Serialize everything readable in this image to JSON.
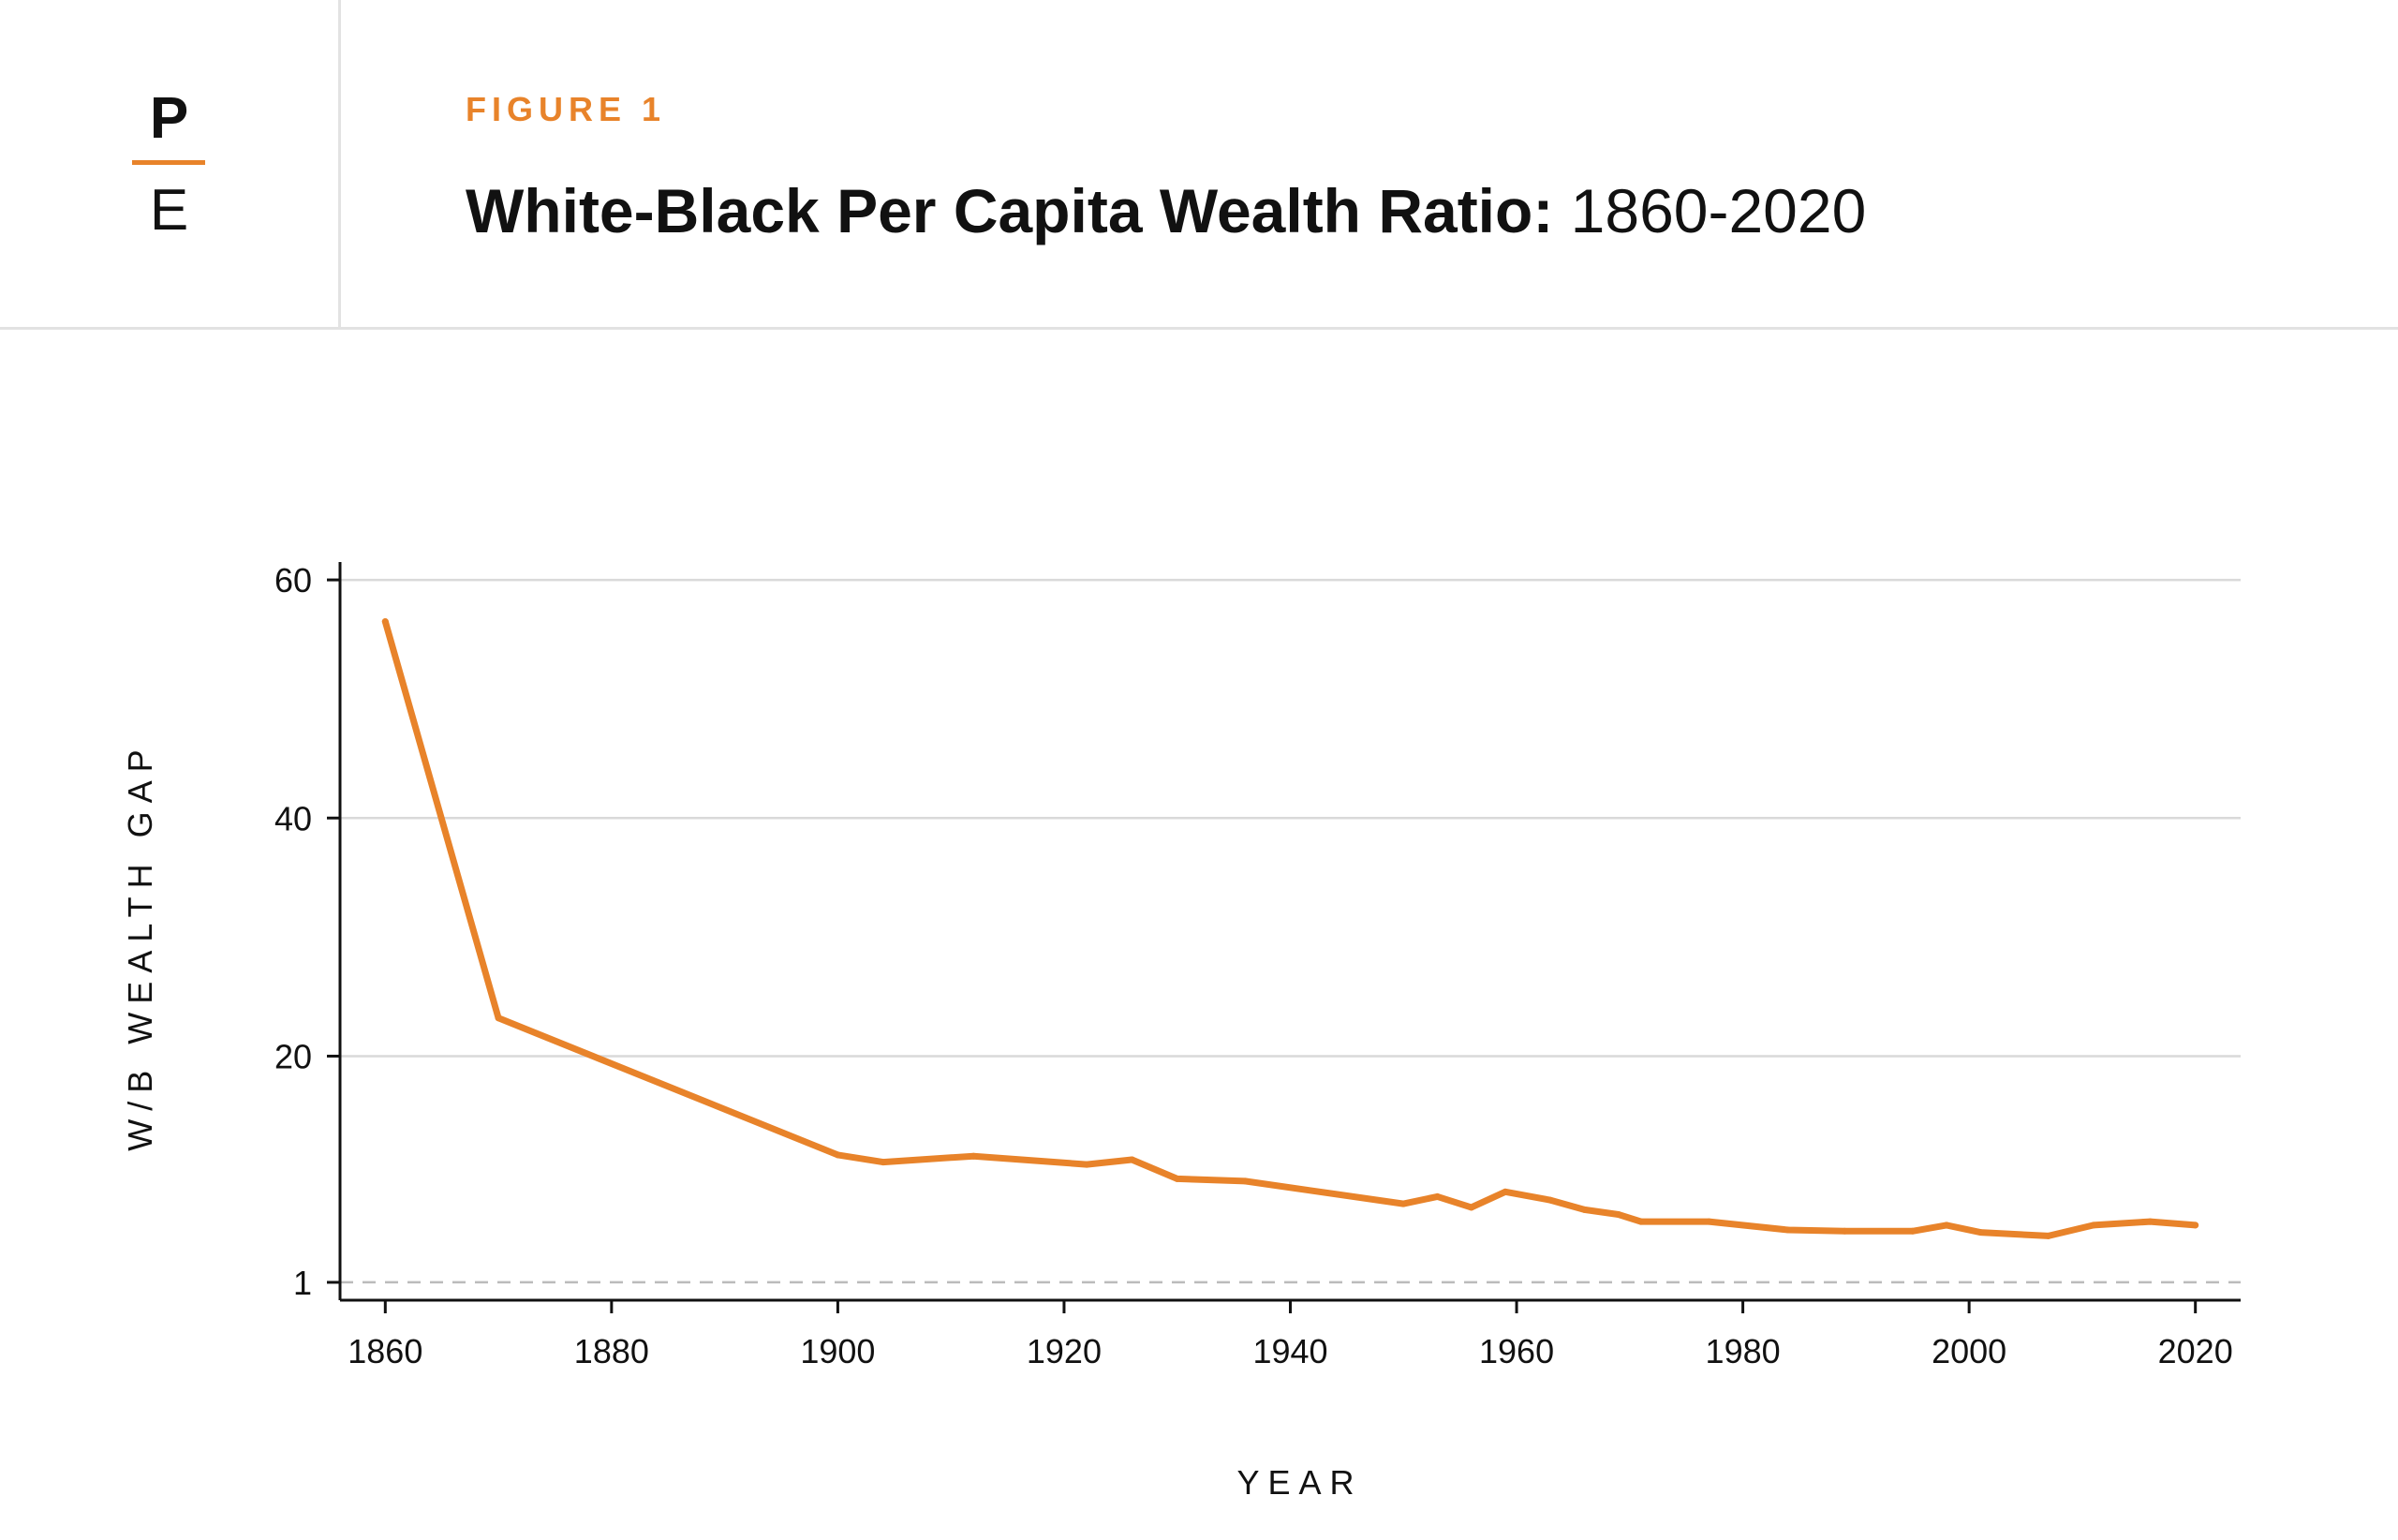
{
  "brand": {
    "top_letter": "P",
    "bottom_letter": "E"
  },
  "figure": {
    "label": "FIGURE 1",
    "title_bold": "White-Black Per Capita Wealth Ratio:",
    "title_light": "1860-2020"
  },
  "colors": {
    "accent": "#e8832a",
    "grid": "#d9d9d9",
    "axis": "#111111",
    "reference": "#bbbbbb"
  },
  "chart_data": {
    "type": "line",
    "title": "White-Black Per Capita Wealth Ratio: 1860-2020",
    "xlabel": "YEAR",
    "ylabel": "W/B WEALTH GAP",
    "xlim": [
      1856,
      2024
    ],
    "ylim": [
      -0.5,
      61.5
    ],
    "x_ticks": [
      1860,
      1880,
      1900,
      1920,
      1940,
      1960,
      1980,
      2000,
      2020
    ],
    "y_ticks": [
      1,
      20,
      40,
      60
    ],
    "grid": true,
    "reference_line": {
      "y": 1,
      "style": "dashed"
    },
    "series": [
      {
        "name": "White-Black wealth ratio",
        "x": [
          1860,
          1870,
          1900,
          1904,
          1912,
          1922,
          1926,
          1930,
          1936,
          1950,
          1953,
          1956,
          1959,
          1963,
          1966,
          1969,
          1971,
          1977,
          1984,
          1989,
          1995,
          1998,
          2001,
          2007,
          2011,
          2016,
          2020
        ],
        "y": [
          56.5,
          23.2,
          11.7,
          11.1,
          11.6,
          10.9,
          11.3,
          9.7,
          9.5,
          7.6,
          8.2,
          7.3,
          8.6,
          7.9,
          7.1,
          6.7,
          6.1,
          6.1,
          5.4,
          5.3,
          5.3,
          5.8,
          5.2,
          4.9,
          5.8,
          6.1,
          5.8
        ]
      }
    ]
  }
}
